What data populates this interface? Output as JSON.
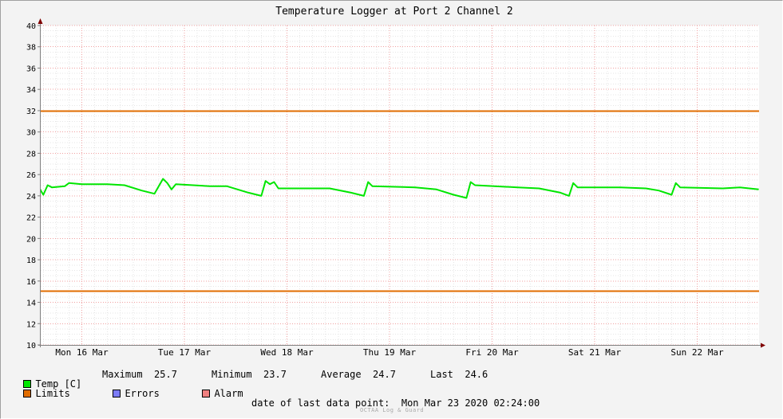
{
  "chart_data": {
    "type": "line",
    "title": "Temperature Logger at Port 2 Channel 2",
    "ylim": [
      10,
      40
    ],
    "yticks": [
      10,
      12,
      14,
      16,
      18,
      20,
      22,
      24,
      26,
      28,
      30,
      32,
      34,
      36,
      38,
      40
    ],
    "x_range_days": [
      "2020-03-16",
      "2020-03-23 02:24"
    ],
    "day_labels": [
      "Mon 16 Mar",
      "Tue 17 Mar",
      "Wed 18 Mar",
      "Thu 19 Mar",
      "Fri 20 Mar",
      "Sat 21 Mar",
      "Sun 22 Mar"
    ],
    "grid": true,
    "limits": {
      "upper": 32,
      "lower": 15.1
    },
    "series": [
      {
        "name": "Temp [C]",
        "color": "#00e600",
        "points": [
          [
            "2020-03-15 21:00",
            24.6
          ],
          [
            "2020-03-16 02:00",
            24.5
          ],
          [
            "2020-03-16 03:00",
            24.1
          ],
          [
            "2020-03-16 04:00",
            25.0
          ],
          [
            "2020-03-16 05:00",
            24.8
          ],
          [
            "2020-03-16 08:00",
            24.9
          ],
          [
            "2020-03-16 09:00",
            25.2
          ],
          [
            "2020-03-16 12:00",
            25.1
          ],
          [
            "2020-03-16 18:00",
            25.1
          ],
          [
            "2020-03-16 22:00",
            25.0
          ],
          [
            "2020-03-17 02:00",
            24.5
          ],
          [
            "2020-03-17 05:00",
            24.2
          ],
          [
            "2020-03-17 06:00",
            24.9
          ],
          [
            "2020-03-17 07:00",
            25.6
          ],
          [
            "2020-03-17 08:00",
            25.2
          ],
          [
            "2020-03-17 09:00",
            24.6
          ],
          [
            "2020-03-17 10:00",
            25.1
          ],
          [
            "2020-03-17 18:00",
            24.9
          ],
          [
            "2020-03-17 22:00",
            24.9
          ],
          [
            "2020-03-18 03:00",
            24.3
          ],
          [
            "2020-03-18 06:00",
            24.0
          ],
          [
            "2020-03-18 07:00",
            25.4
          ],
          [
            "2020-03-18 08:00",
            25.1
          ],
          [
            "2020-03-18 09:00",
            25.3
          ],
          [
            "2020-03-18 10:00",
            24.7
          ],
          [
            "2020-03-18 18:00",
            24.7
          ],
          [
            "2020-03-18 22:00",
            24.7
          ],
          [
            "2020-03-19 03:00",
            24.3
          ],
          [
            "2020-03-19 06:00",
            24.0
          ],
          [
            "2020-03-19 07:00",
            25.3
          ],
          [
            "2020-03-19 08:00",
            24.9
          ],
          [
            "2020-03-19 18:00",
            24.8
          ],
          [
            "2020-03-19 23:00",
            24.6
          ],
          [
            "2020-03-20 03:00",
            24.1
          ],
          [
            "2020-03-20 06:00",
            23.8
          ],
          [
            "2020-03-20 07:00",
            25.3
          ],
          [
            "2020-03-20 08:00",
            25.0
          ],
          [
            "2020-03-20 18:00",
            24.8
          ],
          [
            "2020-03-20 23:00",
            24.7
          ],
          [
            "2020-03-21 04:00",
            24.3
          ],
          [
            "2020-03-21 06:00",
            24.0
          ],
          [
            "2020-03-21 07:00",
            25.2
          ],
          [
            "2020-03-21 08:00",
            24.8
          ],
          [
            "2020-03-21 18:00",
            24.8
          ],
          [
            "2020-03-22 00:00",
            24.7
          ],
          [
            "2020-03-22 03:00",
            24.5
          ],
          [
            "2020-03-22 06:00",
            24.1
          ],
          [
            "2020-03-22 07:00",
            25.2
          ],
          [
            "2020-03-22 08:00",
            24.8
          ],
          [
            "2020-03-22 18:00",
            24.7
          ],
          [
            "2020-03-22 22:00",
            24.8
          ],
          [
            "2020-03-23 02:24",
            24.6
          ]
        ]
      }
    ],
    "grid_color": "#f0a0a0",
    "axis_color": "#800000"
  },
  "legend": {
    "temp": "Temp [C]",
    "maximum_label": "Maximum",
    "maximum_value": "25.7",
    "minimum_label": "Minimum",
    "minimum_value": "23.7",
    "average_label": "Average",
    "average_value": "24.7",
    "last_label": "Last",
    "last_value": "24.6",
    "limits": "Limits",
    "errors": "Errors",
    "alarm": "Alarm",
    "colors": {
      "temp": "#00e600",
      "limits": "#e06c00",
      "errors": "#7c7cf8",
      "alarm": "#f08080"
    }
  },
  "footer": {
    "last_point_label": "date of last data point:",
    "last_point_value": "Mon Mar 23 2020 02:24:00",
    "brand": "OCTAA Log & Guard"
  }
}
